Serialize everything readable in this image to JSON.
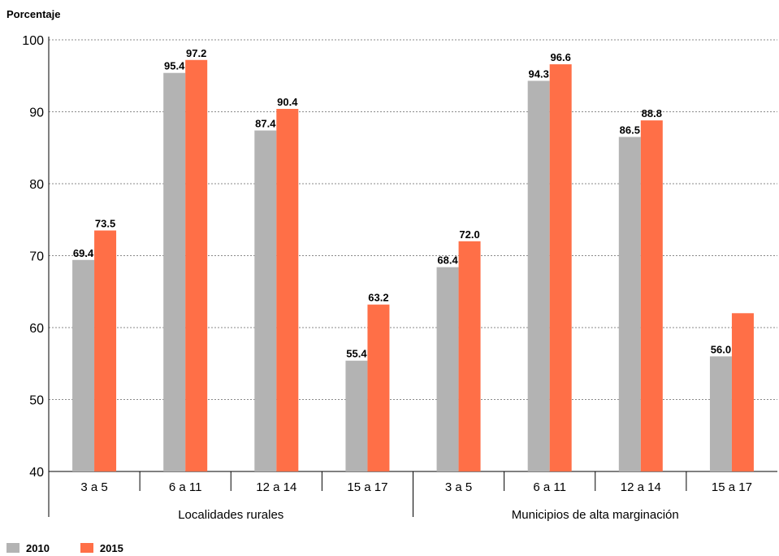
{
  "chart_data": {
    "type": "bar",
    "ylabel": "Porcentaje",
    "ylim": [
      40,
      100
    ],
    "yticks": [
      40,
      50,
      60,
      70,
      80,
      90,
      100
    ],
    "grid": true,
    "legend_position": "bottom-left",
    "groups": [
      {
        "label": "Localidades rurales",
        "categories": [
          "3 a 5",
          "6 a 11",
          "12 a 14",
          "15 a 17"
        ]
      },
      {
        "label": "Municipios de alta marginación",
        "categories": [
          "3 a 5",
          "6 a 11",
          "12 a 14",
          "15 a 17"
        ]
      }
    ],
    "series": [
      {
        "name": "2010",
        "color": "#b3b3b3",
        "values": [
          69.4,
          95.4,
          87.4,
          55.4,
          68.4,
          94.3,
          86.5,
          56.0
        ],
        "value_labels": [
          "69.4",
          "95.4",
          "87.4",
          "55.4",
          "68.4",
          "94.3",
          "86.5",
          "56.0"
        ]
      },
      {
        "name": "2015",
        "color": "#ff6f47",
        "values": [
          73.5,
          97.2,
          90.4,
          63.2,
          72.0,
          96.6,
          88.8,
          62.0
        ],
        "value_labels": [
          "73.5",
          "97.2",
          "90.4",
          "63.2",
          "72.0",
          "96.6",
          "88.8",
          ""
        ]
      }
    ]
  }
}
